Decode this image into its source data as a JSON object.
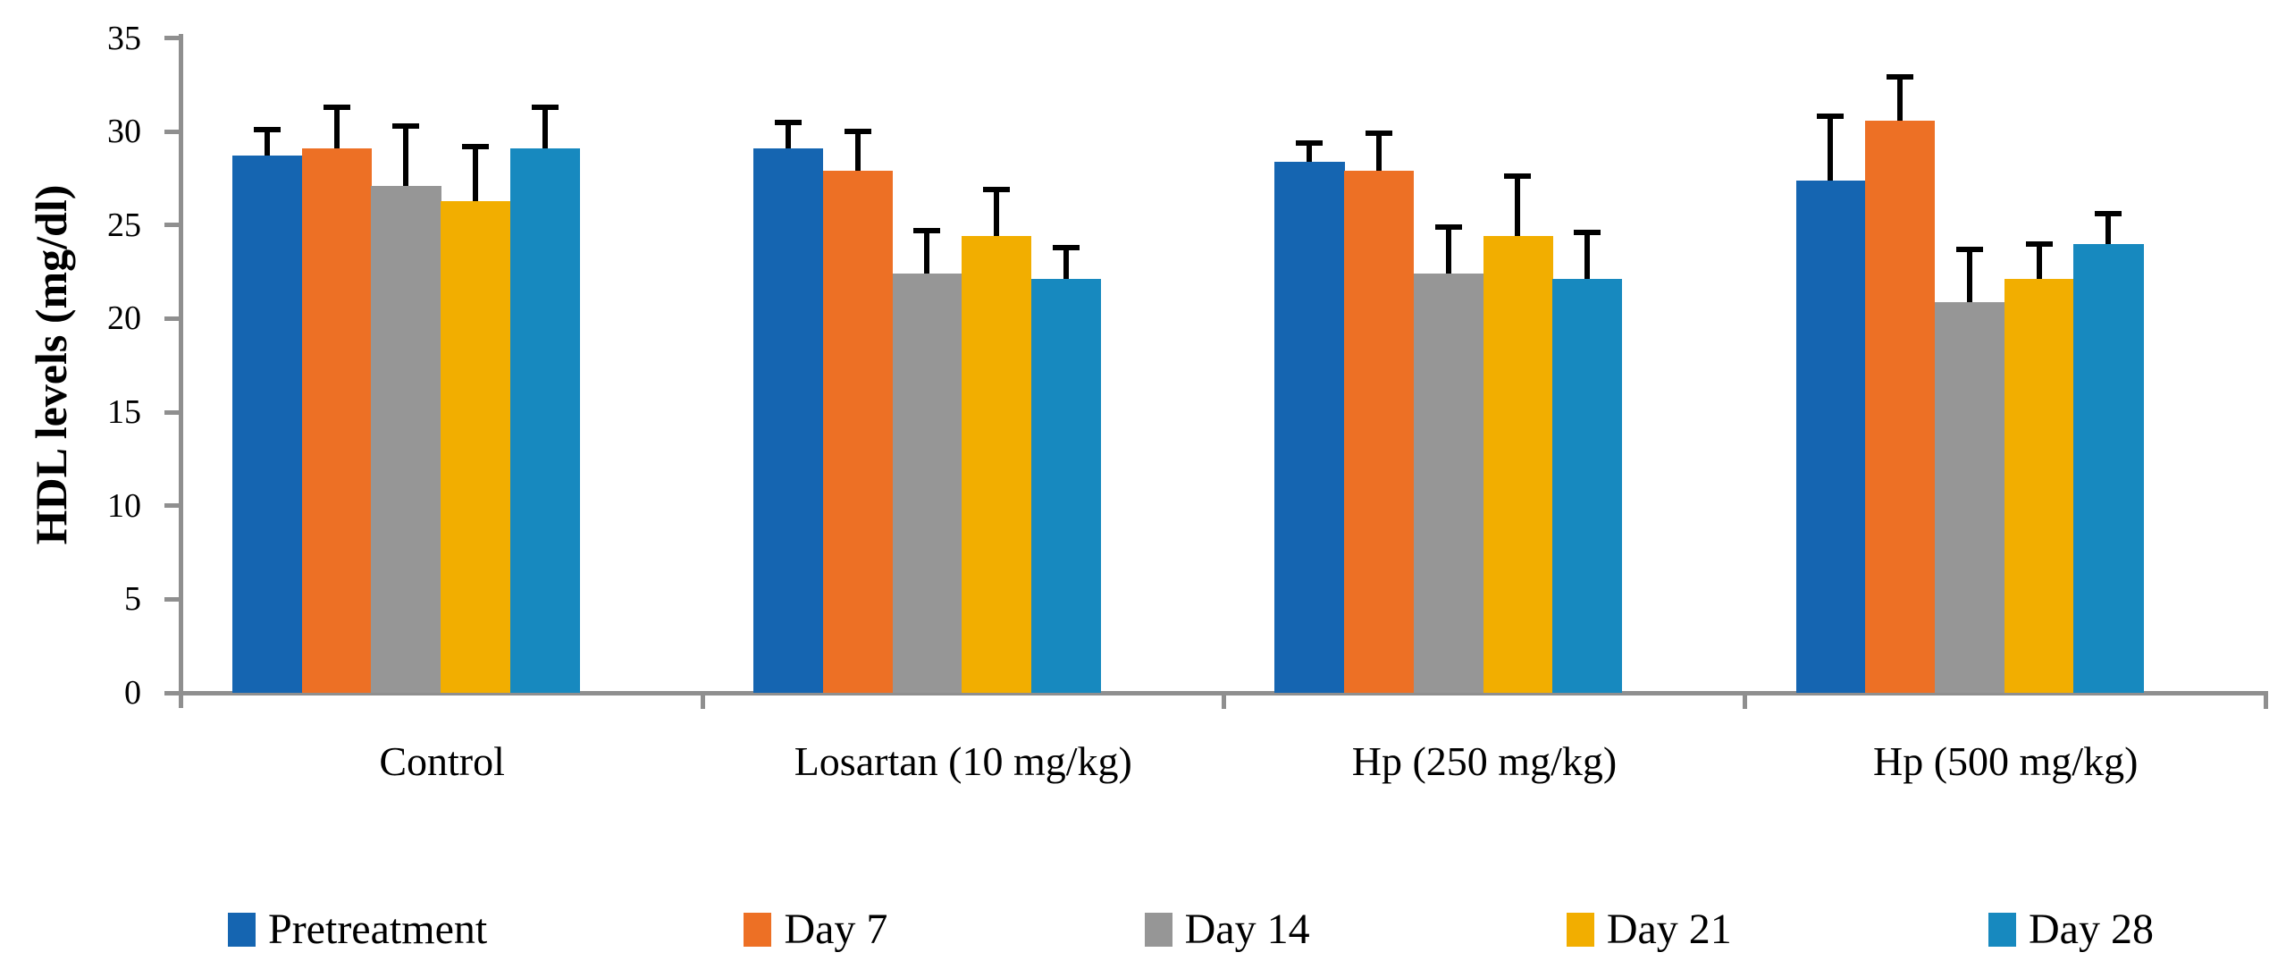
{
  "chart_data": {
    "type": "bar",
    "title": "",
    "xlabel": "",
    "ylabel": "HDL levels (mg/dl)",
    "ylim": [
      0,
      35
    ],
    "yticks": [
      0,
      5,
      10,
      15,
      20,
      25,
      30,
      35
    ],
    "grid": false,
    "legend_position": "bottom",
    "error_bars": true,
    "axis_color": "#8F8F8F",
    "error_bar_color": "#000000",
    "categories": [
      "Control",
      "Losartan (10 mg/kg)",
      "Hp (250 mg/kg)",
      "Hp (500 mg/kg)"
    ],
    "series": [
      {
        "name": "Pretreatment",
        "color": "#1565B1",
        "values": [
          28.7,
          29.1,
          28.4,
          27.4
        ],
        "errors": [
          1.4,
          1.4,
          1.0,
          3.4
        ]
      },
      {
        "name": "Day 7",
        "color": "#ED7025",
        "values": [
          29.1,
          27.9,
          27.9,
          30.6
        ],
        "errors": [
          2.2,
          2.1,
          2.0,
          2.3
        ]
      },
      {
        "name": "Day 14",
        "color": "#969696",
        "values": [
          27.1,
          22.4,
          22.4,
          20.9
        ],
        "errors": [
          3.2,
          2.3,
          2.5,
          2.8
        ]
      },
      {
        "name": "Day 21",
        "color": "#F2AE00",
        "values": [
          26.3,
          24.4,
          24.4,
          22.1
        ],
        "errors": [
          2.9,
          2.5,
          3.2,
          1.9
        ]
      },
      {
        "name": "Day 28",
        "color": "#1789BF",
        "values": [
          29.1,
          22.1,
          22.1,
          24.0
        ],
        "errors": [
          2.2,
          1.7,
          2.5,
          1.6
        ]
      }
    ]
  }
}
